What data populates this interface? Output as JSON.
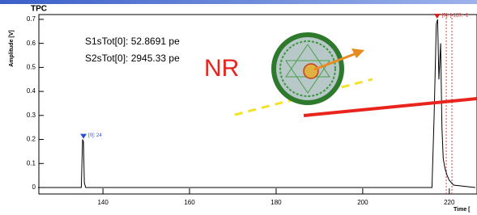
{
  "chart_data": {
    "type": "line",
    "title": "TPC",
    "x_label": "Time [",
    "y_label": "Amplitude [V]",
    "x": [
      125,
      135,
      135.3,
      135.5,
      135.7,
      136,
      216,
      216.5,
      217,
      217.3,
      217.6,
      218,
      218.3,
      218.6,
      219,
      219.5,
      220,
      221,
      226
    ],
    "series": [
      {
        "color": "#000000",
        "values": [
          0,
          0,
          0.2,
          0.19,
          0.02,
          0,
          0,
          0.3,
          0.68,
          0.7,
          0.45,
          0.6,
          0.25,
          0.12,
          0.08,
          0.05,
          0.03,
          0.01,
          0
        ]
      }
    ],
    "xlim": [
      125.2,
      226.4
    ],
    "ylim": [
      -0.027,
      0.72
    ],
    "xticks": [
      140,
      160,
      180,
      200,
      220
    ],
    "yticks": [
      0,
      0.1,
      0.2,
      0.3,
      0.4,
      0.5,
      0.6,
      0.7
    ],
    "markers": [
      {
        "x": 135.5,
        "y": 0.21,
        "label": "[0]: 24",
        "color": "#2a4fd6"
      },
      {
        "x": 217.2,
        "y": 0.71,
        "label": "[0]: [-120, -1",
        "color": "#d62020"
      }
    ],
    "vlines": [
      219.3,
      220.6
    ],
    "vline_color": "#e04040",
    "annotations": [
      "S1sTot[0]: 52.8691 pe",
      "S2sTot[0]: 2945.33 pe",
      "NR"
    ]
  }
}
